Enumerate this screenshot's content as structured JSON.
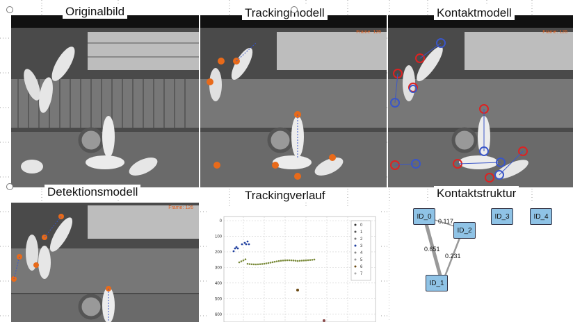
{
  "panels": {
    "original": {
      "title": "Originalbild"
    },
    "tracking": {
      "title": "Trackingmodell",
      "frame": "Frame: 126"
    },
    "contact": {
      "title": "Kontaktmodell",
      "frame": "Frame: 126"
    },
    "detection": {
      "title": "Detektionsmodell",
      "frame": "Frame: 126"
    },
    "trajectory": {
      "title": "Trackingverlauf"
    },
    "structure": {
      "title": "Kontaktstruktur"
    }
  },
  "contact_graph": {
    "nodes": [
      "ID_0",
      "ID_2",
      "ID_3",
      "ID_4",
      "ID_1"
    ],
    "edges": [
      {
        "from": "ID_0",
        "to": "ID_2",
        "weight": "0.117"
      },
      {
        "from": "ID_0",
        "to": "ID_1",
        "weight": "0.651"
      },
      {
        "from": "ID_2",
        "to": "ID_1",
        "weight": "0.231"
      }
    ]
  },
  "chart_data": {
    "type": "scatter",
    "title": "Trackingverlauf",
    "y_ticks": [
      "0",
      "100",
      "200",
      "300",
      "400",
      "500",
      "600"
    ],
    "legend": [
      "0",
      "1",
      "2",
      "3",
      "4",
      "5",
      "6",
      "7"
    ],
    "legend_colors": [
      "#333333",
      "#555555",
      "#777777",
      "#1f3f9f",
      "#888888",
      "#999999",
      "#6b4a12",
      "#aaaaaa"
    ],
    "ylim": [
      0,
      650
    ],
    "grid": true,
    "legend_position": "top-right"
  }
}
